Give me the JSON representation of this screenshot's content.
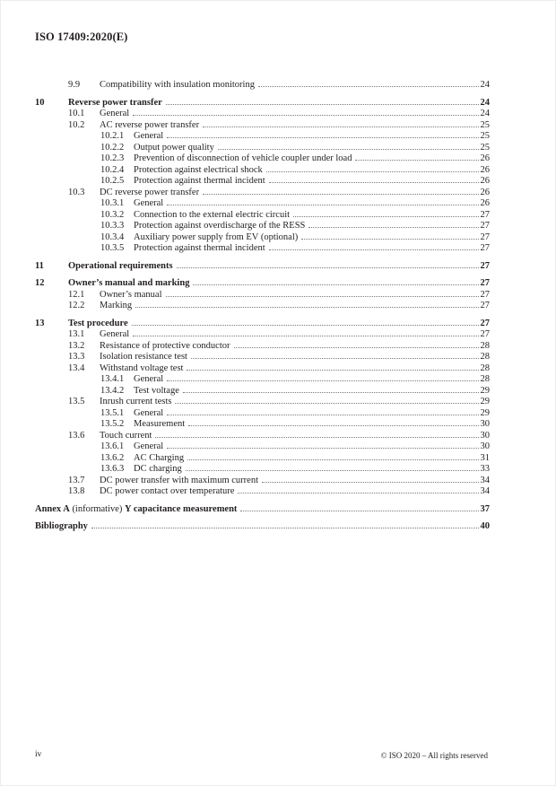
{
  "header": {
    "document_id": "ISO 17409:2020(E)"
  },
  "colors": {
    "text": "#231f20",
    "leader_dots": "#7a7a7a",
    "page_background": "#ffffff"
  },
  "toc": {
    "entries": [
      {
        "num": "9.9",
        "title": "Compatibility with insulation monitoring",
        "page": "24",
        "level": 2,
        "bold": false
      },
      {
        "num": "10",
        "title": "Reverse power transfer",
        "page": "24",
        "level": 1,
        "bold": true
      },
      {
        "num": "10.1",
        "title": "General",
        "page": "24",
        "level": 2,
        "bold": false
      },
      {
        "num": "10.2",
        "title": "AC reverse power transfer",
        "page": "25",
        "level": 2,
        "bold": false
      },
      {
        "num": "10.2.1",
        "title": "General",
        "page": "25",
        "level": 3,
        "bold": false
      },
      {
        "num": "10.2.2",
        "title": "Output power quality",
        "page": "25",
        "level": 3,
        "bold": false
      },
      {
        "num": "10.2.3",
        "title": "Prevention of disconnection of vehicle coupler under load",
        "page": "26",
        "level": 3,
        "bold": false
      },
      {
        "num": "10.2.4",
        "title": "Protection against electrical shock",
        "page": "26",
        "level": 3,
        "bold": false
      },
      {
        "num": "10.2.5",
        "title": "Protection against thermal incident",
        "page": "26",
        "level": 3,
        "bold": false
      },
      {
        "num": "10.3",
        "title": "DC reverse power transfer",
        "page": "26",
        "level": 2,
        "bold": false
      },
      {
        "num": "10.3.1",
        "title": "General",
        "page": "26",
        "level": 3,
        "bold": false
      },
      {
        "num": "10.3.2",
        "title": "Connection to the external electric circuit",
        "page": "27",
        "level": 3,
        "bold": false
      },
      {
        "num": "10.3.3",
        "title": "Protection against overdischarge of the RESS",
        "page": "27",
        "level": 3,
        "bold": false
      },
      {
        "num": "10.3.4",
        "title": "Auxiliary power supply from EV (optional)",
        "page": "27",
        "level": 3,
        "bold": false
      },
      {
        "num": "10.3.5",
        "title": "Protection against thermal incident",
        "page": "27",
        "level": 3,
        "bold": false
      },
      {
        "num": "11",
        "title": "Operational requirements",
        "page": "27",
        "level": 1,
        "bold": true
      },
      {
        "num": "12",
        "title": "Owner’s manual and marking",
        "page": "27",
        "level": 1,
        "bold": true
      },
      {
        "num": "12.1",
        "title": "Owner’s manual",
        "page": "27",
        "level": 2,
        "bold": false
      },
      {
        "num": "12.2",
        "title": "Marking",
        "page": "27",
        "level": 2,
        "bold": false
      },
      {
        "num": "13",
        "title": "Test procedure",
        "page": "27",
        "level": 1,
        "bold": true
      },
      {
        "num": "13.1",
        "title": "General",
        "page": "27",
        "level": 2,
        "bold": false
      },
      {
        "num": "13.2",
        "title": "Resistance of protective conductor",
        "page": "28",
        "level": 2,
        "bold": false
      },
      {
        "num": "13.3",
        "title": "Isolation resistance test",
        "page": "28",
        "level": 2,
        "bold": false
      },
      {
        "num": "13.4",
        "title": "Withstand voltage test",
        "page": "28",
        "level": 2,
        "bold": false
      },
      {
        "num": "13.4.1",
        "title": "General",
        "page": "28",
        "level": 3,
        "bold": false
      },
      {
        "num": "13.4.2",
        "title": "Test voltage",
        "page": "29",
        "level": 3,
        "bold": false
      },
      {
        "num": "13.5",
        "title": "Inrush current tests",
        "page": "29",
        "level": 2,
        "bold": false
      },
      {
        "num": "13.5.1",
        "title": "General",
        "page": "29",
        "level": 3,
        "bold": false
      },
      {
        "num": "13.5.2",
        "title": "Measurement",
        "page": "30",
        "level": 3,
        "bold": false
      },
      {
        "num": "13.6",
        "title": "Touch current",
        "page": "30",
        "level": 2,
        "bold": false
      },
      {
        "num": "13.6.1",
        "title": "General",
        "page": "30",
        "level": 3,
        "bold": false
      },
      {
        "num": "13.6.2",
        "title": "AC Charging",
        "page": "31",
        "level": 3,
        "bold": false
      },
      {
        "num": "13.6.3",
        "title": "DC charging",
        "page": "33",
        "level": 3,
        "bold": false
      },
      {
        "num": "13.7",
        "title": "DC power transfer with maximum current",
        "page": "34",
        "level": 2,
        "bold": false
      },
      {
        "num": "13.8",
        "title": "DC power contact over temperature",
        "page": "34",
        "level": 2,
        "bold": false
      },
      {
        "num": "",
        "title_parts": [
          {
            "t": "Annex A",
            "b": true
          },
          {
            "t": " (informative) ",
            "b": false
          },
          {
            "t": "Y capacitance measurement",
            "b": true
          }
        ],
        "page": "37",
        "level": 0,
        "bold": true
      },
      {
        "num": "",
        "title": "Bibliography",
        "page": "40",
        "level": 0,
        "bold": true
      }
    ]
  },
  "footer": {
    "page_number": "iv",
    "copyright": "© ISO 2020 – All rights reserved"
  }
}
